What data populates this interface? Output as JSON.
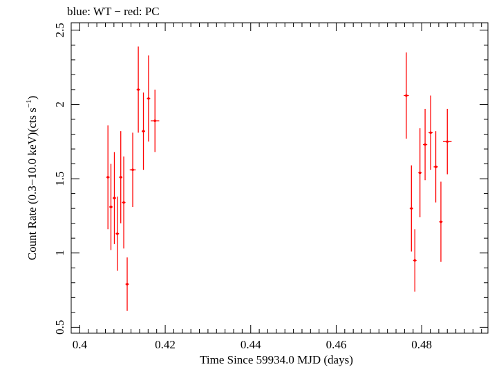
{
  "chart_data": {
    "type": "scatter",
    "title": "blue: WT − red: PC",
    "xlabel": "Time Since 59934.0 MJD (days)",
    "ylabel_main": "Count Rate (0.3−10.0 keV)(cts s",
    "ylabel_sup": "−1",
    "ylabel_end": ")",
    "xlim": [
      0.398,
      0.4955
    ],
    "ylim": [
      0.46,
      2.55
    ],
    "xticks": [
      0.4,
      0.42,
      0.44,
      0.46,
      0.48
    ],
    "xtick_labels": [
      "0.4",
      "0.42",
      "0.44",
      "0.46",
      "0.48"
    ],
    "yticks": [
      0.5,
      1,
      1.5,
      2,
      2.5
    ],
    "ytick_labels": [
      "0.5",
      "1",
      "1.5",
      "2",
      "2.5"
    ],
    "grid": false,
    "series": [
      {
        "color": "#ff0000",
        "points": [
          {
            "x": 0.4066,
            "xerr": 0.0004,
            "y": 1.51,
            "yerr": 0.35
          },
          {
            "x": 0.4073,
            "xerr": 0.0004,
            "y": 1.31,
            "yerr": 0.29
          },
          {
            "x": 0.4081,
            "xerr": 0.0004,
            "y": 1.37,
            "yerr": 0.31
          },
          {
            "x": 0.4088,
            "xerr": 0.0004,
            "y": 1.13,
            "yerr": 0.25
          },
          {
            "x": 0.4096,
            "xerr": 0.0004,
            "y": 1.51,
            "yerr": 0.31
          },
          {
            "x": 0.4103,
            "xerr": 0.0004,
            "y": 1.34,
            "yerr": 0.31
          },
          {
            "x": 0.4111,
            "xerr": 0.0004,
            "y": 0.79,
            "yerr": 0.18
          },
          {
            "x": 0.4124,
            "xerr": 0.0007,
            "y": 1.56,
            "yerr": 0.25
          },
          {
            "x": 0.4137,
            "xerr": 0.0004,
            "y": 2.1,
            "yerr": 0.29
          },
          {
            "x": 0.4149,
            "xerr": 0.0004,
            "y": 1.82,
            "yerr": 0.26
          },
          {
            "x": 0.4161,
            "xerr": 0.0004,
            "y": 2.04,
            "yerr": 0.29
          },
          {
            "x": 0.4176,
            "xerr": 0.001,
            "y": 1.89,
            "yerr": 0.21
          },
          {
            "x": 0.4764,
            "xerr": 0.0006,
            "y": 2.06,
            "yerr": 0.29
          },
          {
            "x": 0.4776,
            "xerr": 0.0004,
            "y": 1.3,
            "yerr": 0.29
          },
          {
            "x": 0.4784,
            "xerr": 0.0004,
            "y": 0.95,
            "yerr": 0.21
          },
          {
            "x": 0.4796,
            "xerr": 0.0004,
            "y": 1.54,
            "yerr": 0.3
          },
          {
            "x": 0.4808,
            "xerr": 0.0005,
            "y": 1.73,
            "yerr": 0.24
          },
          {
            "x": 0.4821,
            "xerr": 0.0005,
            "y": 1.81,
            "yerr": 0.25
          },
          {
            "x": 0.4833,
            "xerr": 0.0005,
            "y": 1.58,
            "yerr": 0.24
          },
          {
            "x": 0.4845,
            "xerr": 0.0004,
            "y": 1.21,
            "yerr": 0.27
          },
          {
            "x": 0.486,
            "xerr": 0.001,
            "y": 1.75,
            "yerr": 0.22
          }
        ]
      }
    ]
  }
}
